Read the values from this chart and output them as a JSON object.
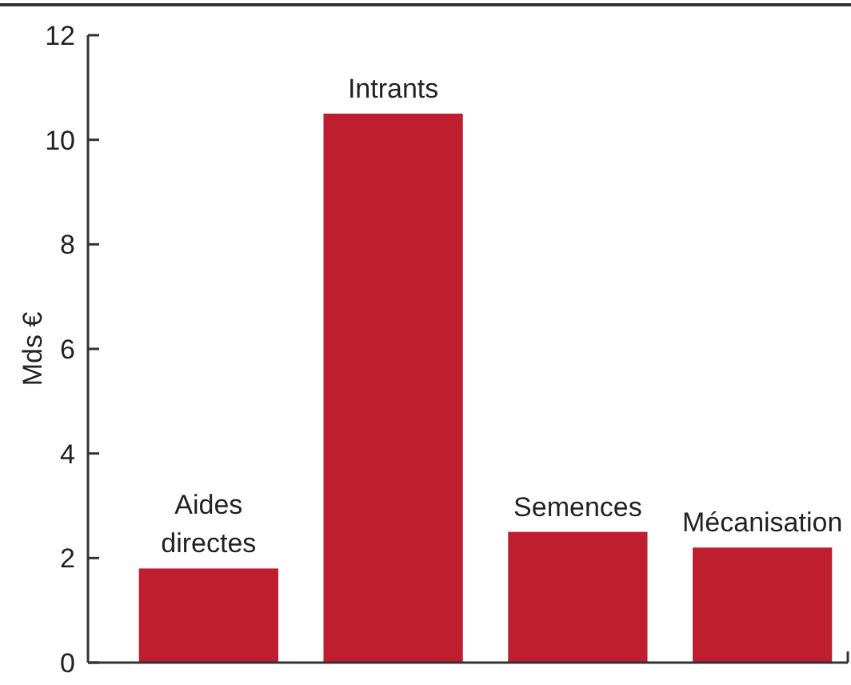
{
  "chart_data": {
    "type": "bar",
    "ylabel": "Mds €",
    "categories": [
      "Aides directes",
      "Intrants",
      "Semences",
      "Mécanisation"
    ],
    "values": [
      1.8,
      10.5,
      2.5,
      2.2
    ],
    "color": "#be1e2d",
    "ylim": [
      0,
      12
    ],
    "yticks": [
      0,
      2,
      4,
      6,
      8,
      10,
      12
    ],
    "grid": false
  }
}
